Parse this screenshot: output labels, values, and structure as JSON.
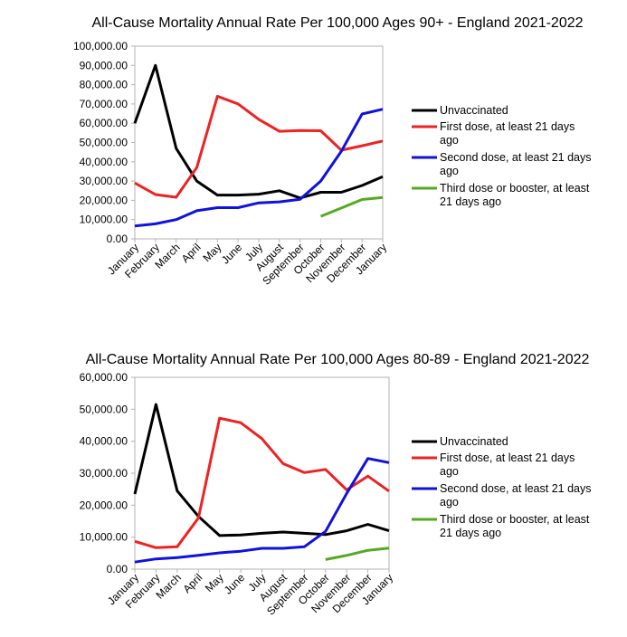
{
  "chart_data": [
    {
      "type": "line",
      "title": "All-Cause Mortality Annual Rate Per 100,000 Ages 90+ - England 2021-2022",
      "categories": [
        "January",
        "February",
        "March",
        "April",
        "May",
        "June",
        "July",
        "August",
        "September",
        "October",
        "November",
        "December",
        "January"
      ],
      "y_ticks": [
        "0.00",
        "10,000.00",
        "20,000.00",
        "30,000.00",
        "40,000.00",
        "50,000.00",
        "60,000.00",
        "70,000.00",
        "80,000.00",
        "90,000.00",
        "100,000.00"
      ],
      "ylim": [
        0,
        100000
      ],
      "grid": false,
      "legend_position": "right",
      "series": [
        {
          "name": "Unvaccinated",
          "color": "#000000",
          "values": [
            60000,
            90000,
            47000,
            30000,
            22700,
            22700,
            23200,
            25000,
            21200,
            24200,
            24200,
            27700,
            32300
          ]
        },
        {
          "name": "First dose, at least 21 days ago",
          "color": "#ee2222",
          "values": [
            29000,
            23000,
            21600,
            37000,
            74000,
            70000,
            62000,
            55800,
            56200,
            56100,
            46000,
            48300,
            50800
          ]
        },
        {
          "name": "Second dose, at least 21 days ago",
          "color": "#1111dd",
          "values": [
            6700,
            7800,
            10000,
            14600,
            16200,
            16200,
            18700,
            19200,
            20500,
            30000,
            45500,
            64800,
            67300
          ]
        },
        {
          "name": "Third dose or booster, at least 21 days ago",
          "color": "#55aa22",
          "values": [
            null,
            null,
            null,
            null,
            null,
            null,
            null,
            null,
            null,
            11700,
            16000,
            20400,
            21500
          ]
        }
      ]
    },
    {
      "type": "line",
      "title": "All-Cause Mortality Annual Rate Per 100,000 Ages 80-89 - England 2021-2022",
      "categories": [
        "January",
        "February",
        "March",
        "April",
        "May",
        "June",
        "July",
        "August",
        "September",
        "October",
        "November",
        "December",
        "January"
      ],
      "y_ticks": [
        "0.00",
        "10,000.00",
        "20,000.00",
        "30,000.00",
        "40,000.00",
        "50,000.00",
        "60,000.00"
      ],
      "ylim": [
        0,
        60000
      ],
      "grid": false,
      "legend_position": "right",
      "series": [
        {
          "name": "Unvaccinated",
          "color": "#000000",
          "values": [
            23500,
            51500,
            24500,
            16500,
            10500,
            10700,
            11200,
            11600,
            11200,
            10800,
            12000,
            14000,
            12000
          ]
        },
        {
          "name": "First dose, at least 21 days ago",
          "color": "#ee2222",
          "values": [
            8700,
            6700,
            7000,
            16000,
            47200,
            45800,
            40800,
            33000,
            30200,
            31200,
            24800,
            29100,
            24400
          ]
        },
        {
          "name": "Second dose, at least 21 days ago",
          "color": "#1111dd",
          "values": [
            2200,
            3200,
            3600,
            4300,
            5100,
            5600,
            6500,
            6500,
            7000,
            11800,
            23700,
            34600,
            33300
          ]
        },
        {
          "name": "Third dose or booster, at least 21 days ago",
          "color": "#55aa22",
          "values": [
            null,
            null,
            null,
            null,
            null,
            null,
            null,
            null,
            null,
            3000,
            4300,
            5900,
            6600
          ]
        }
      ]
    }
  ],
  "legend_lines": [
    [
      "Unvaccinated"
    ],
    [
      "First dose, at least 21 days",
      "ago"
    ],
    [
      "Second dose, at least 21 days",
      "ago"
    ],
    [
      "Third dose or booster, at least",
      "21 days ago"
    ]
  ]
}
